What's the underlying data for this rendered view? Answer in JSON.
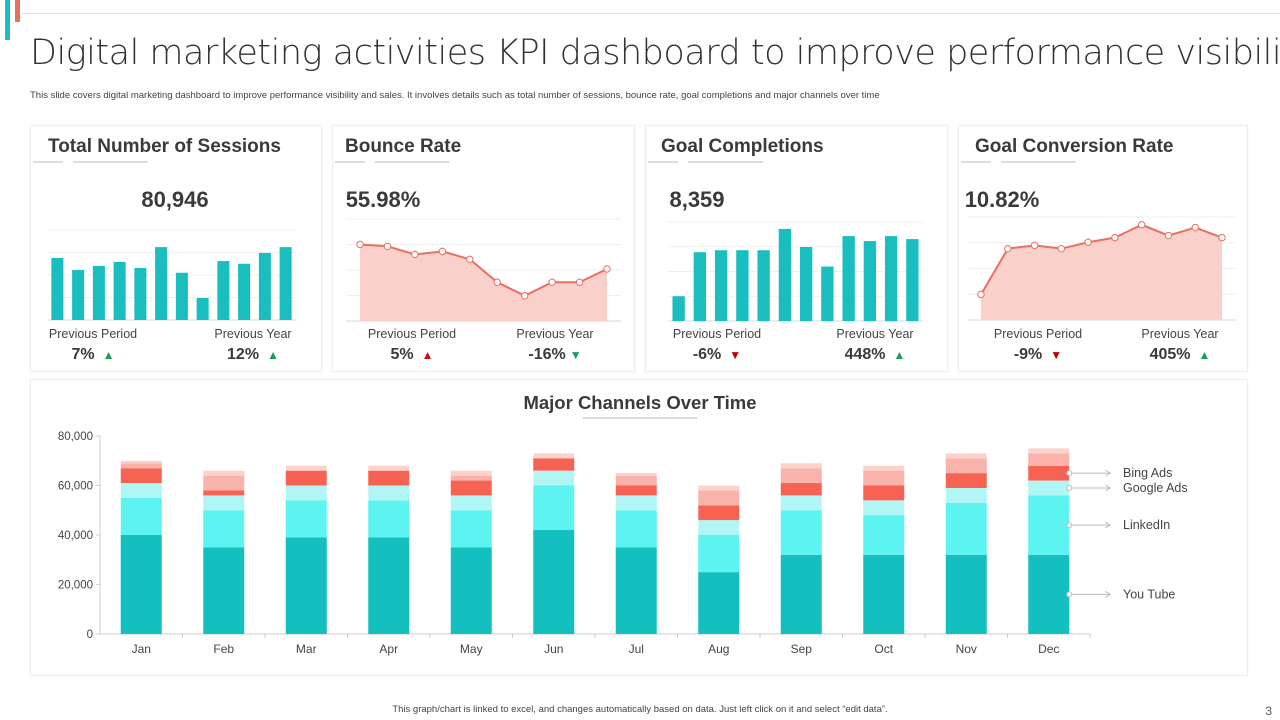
{
  "header": {
    "title": "Digital marketing activities KPI dashboard to improve performance visibility",
    "subtitle": "This slide covers digital marketing dashboard to improve performance visibility and sales. It involves details such as total number  of sessions, bounce rate, goal completions  and major channels over time"
  },
  "kpis": [
    {
      "title": "Total Number of Sessions",
      "value": "80,946",
      "prev_period_label": "Previous Period",
      "prev_period": "7%",
      "prev_period_trend": "up",
      "prev_year_label": "Previous Year",
      "prev_year": "12%",
      "prev_year_trend": "up"
    },
    {
      "title": "Bounce Rate",
      "value": "55.98%",
      "prev_period_label": "Previous Period",
      "prev_period": "5%",
      "prev_period_trend": "up",
      "prev_year_label": "Previous Year",
      "prev_year": "-16%",
      "prev_year_trend": "down"
    },
    {
      "title": "Goal Completions",
      "value": "8,359",
      "prev_period_label": "Previous Period",
      "prev_period": "-6%",
      "prev_period_trend": "down",
      "prev_year_label": "Previous Year",
      "prev_year": "448%",
      "prev_year_trend": "up"
    },
    {
      "title": "Goal Conversion Rate",
      "value": "10.82%",
      "prev_period_label": "Previous Period",
      "prev_period": "-9%",
      "prev_period_trend": "down",
      "prev_year_label": "Previous Year",
      "prev_year": "405%",
      "prev_year_trend": "up"
    }
  ],
  "icons": {
    "up": "▲",
    "down": "▼"
  },
  "colors": {
    "teal": "#13BFBF",
    "cyan": "#5CF3F0",
    "light_cyan": "#B2F5F5",
    "red": "#F76353",
    "pink": "#F9B3AA",
    "light_pink": "#FBD3CD",
    "area_fill": "#FAD0CB",
    "area_line": "#E8705F",
    "trend_good": "#1A9E5A",
    "trend_bad": "#C00000"
  },
  "chart_data": [
    {
      "type": "bar",
      "ylim": [
        0,
        4
      ],
      "grid": true,
      "values": [
        2.76,
        2.22,
        2.4,
        2.58,
        2.31,
        3.24,
        2.1,
        0.98,
        2.62,
        2.5,
        2.98,
        3.24
      ]
    },
    {
      "type": "area",
      "ylim": [
        0,
        4
      ],
      "grid": true,
      "values": [
        3.0,
        2.93,
        2.61,
        2.73,
        2.42,
        1.52,
        0.99,
        1.52,
        1.52,
        2.04
      ]
    },
    {
      "type": "bar",
      "ylim": [
        0,
        4
      ],
      "grid": true,
      "values": [
        1.0,
        2.78,
        2.86,
        2.86,
        2.86,
        3.72,
        2.99,
        2.2,
        3.43,
        3.23,
        3.43,
        3.31
      ]
    },
    {
      "type": "area",
      "ylim": [
        0,
        4
      ],
      "grid": true,
      "values": [
        0.99,
        2.77,
        2.9,
        2.77,
        3.02,
        3.2,
        3.7,
        3.28,
        3.59,
        3.2
      ]
    },
    {
      "type": "bar",
      "stacked": true,
      "title": "Major Channels Over Time",
      "categories": [
        "Jan",
        "Feb",
        "Mar",
        "Apr",
        "May",
        "Jun",
        "Jul",
        "Aug",
        "Sep",
        "Oct",
        "Nov",
        "Dec"
      ],
      "ylim": [
        0,
        80000
      ],
      "yticks": [
        "0",
        "20,000",
        "40,000",
        "60,000",
        "80,000"
      ],
      "ytick_values": [
        0,
        20000,
        40000,
        60000,
        80000
      ],
      "legend_placement": "right",
      "series": [
        {
          "name": "You Tube",
          "color": "#13BFBF",
          "values": [
            40000,
            35000,
            39000,
            39000,
            35000,
            42000,
            35000,
            25000,
            32000,
            32000,
            32000,
            32000
          ]
        },
        {
          "name": "LinkedIn",
          "color": "#5CF3F0",
          "values": [
            15000,
            15000,
            15000,
            15000,
            15000,
            18000,
            15000,
            15000,
            18000,
            16000,
            21000,
            24000
          ]
        },
        {
          "name": "Google Ads",
          "color": "#B2F5F5",
          "values": [
            6000,
            6000,
            6000,
            6000,
            6000,
            6000,
            6000,
            6000,
            6000,
            6000,
            6000,
            6000
          ]
        },
        {
          "name": "Bing Ads",
          "color": "#F76353",
          "values": [
            6000,
            2000,
            6000,
            6000,
            6000,
            5000,
            4000,
            6000,
            5000,
            6000,
            6000,
            6000
          ]
        },
        {
          "color": "#F9B3AA",
          "values": [
            2000,
            6000,
            0,
            0,
            2000,
            0,
            4000,
            6000,
            6000,
            6000,
            6000,
            5000
          ]
        },
        {
          "color": "#FBD3CD",
          "values": [
            1000,
            2000,
            2000,
            2000,
            2000,
            2000,
            1000,
            2000,
            2000,
            2000,
            2000,
            2000
          ]
        }
      ]
    }
  ],
  "footer": {
    "note": "This graph/chart is linked to excel, and changes automatically based on data. Just left click on it and select “edit data”.",
    "page_number": "3"
  }
}
